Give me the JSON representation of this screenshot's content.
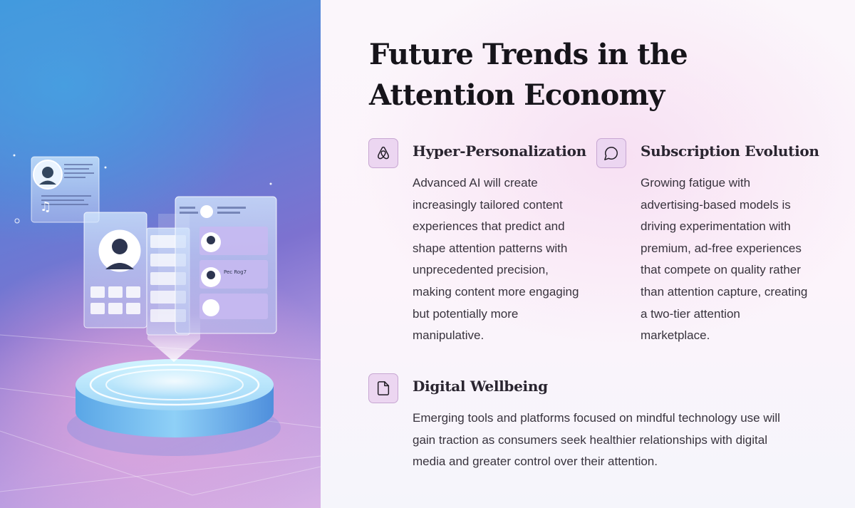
{
  "page": {
    "title": "Future Trends in the Attention Economy",
    "accent_color": "#ecd6f1",
    "illustration": {
      "name": "holographic social media interface on glowing podium",
      "mini_labels": [
        "Pec Rog7"
      ]
    }
  },
  "features": [
    {
      "icon": "airbnb-logo-icon",
      "heading": "Hyper-Personalization",
      "body": "Advanced AI will create increasingly tailored content experiences that predict and shape attention patterns with unprecedented precision, making content more engaging but potentially more manipulative."
    },
    {
      "icon": "speech-bubble-icon",
      "heading": "Subscription Evolution",
      "body": "Growing fatigue with advertising-based models is driving experimentation with premium, ad-free experiences that compete on quality rather than attention capture, creating a two-tier attention marketplace."
    },
    {
      "icon": "document-icon",
      "heading": "Digital Wellbeing",
      "body": "Emerging tools and platforms focused on mindful technology use will gain traction as consumers seek healthier relationships with digital media and greater control over their attention."
    }
  ]
}
